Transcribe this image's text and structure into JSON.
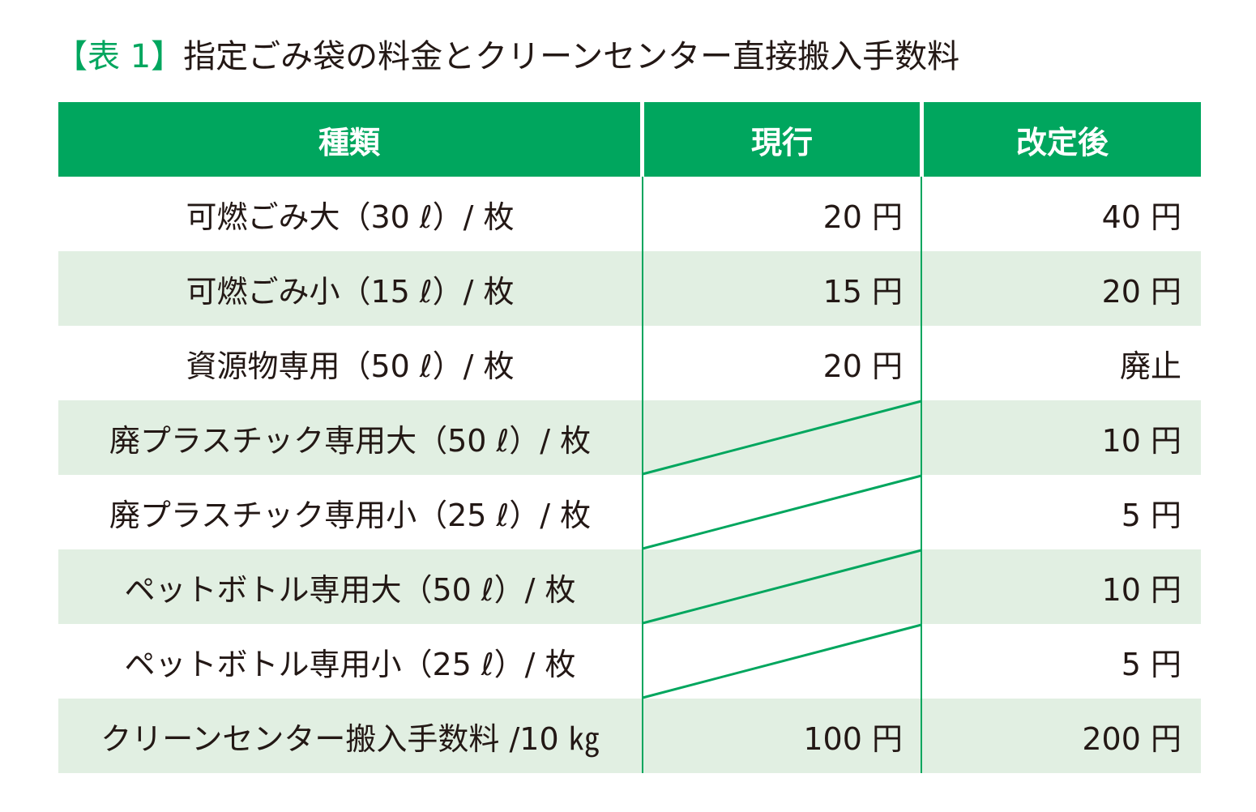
{
  "title": {
    "tag": "【表 1】",
    "text": "指定ごみ袋の料金とクリーンセンター直接搬入手数料"
  },
  "accent_color": "#00a65e",
  "stripe_color": "#e1efe2",
  "table": {
    "headers": [
      "種類",
      "現行",
      "改定後"
    ],
    "rows": [
      {
        "name": "可燃ごみ大（30 ℓ）/ 枚",
        "current": "20 円",
        "revised": "40 円",
        "no_current": false
      },
      {
        "name": "可燃ごみ小（15 ℓ）/ 枚",
        "current": "15 円",
        "revised": "20 円",
        "no_current": false
      },
      {
        "name": "資源物専用（50 ℓ）/ 枚",
        "current": "20 円",
        "revised": "廃止",
        "no_current": false
      },
      {
        "name": "廃プラスチック専用大（50 ℓ）/ 枚",
        "current": "",
        "revised": "10 円",
        "no_current": true
      },
      {
        "name": "廃プラスチック専用小（25 ℓ）/ 枚",
        "current": "",
        "revised": "5 円",
        "no_current": true
      },
      {
        "name": "ペットボトル専用大（50 ℓ）/ 枚",
        "current": "",
        "revised": "10 円",
        "no_current": true
      },
      {
        "name": "ペットボトル専用小（25 ℓ）/ 枚",
        "current": "",
        "revised": "5 円",
        "no_current": true
      },
      {
        "name": "クリーンセンター搬入手数料 /10 ㎏",
        "current": "100 円",
        "revised": "200 円",
        "no_current": false
      }
    ]
  }
}
